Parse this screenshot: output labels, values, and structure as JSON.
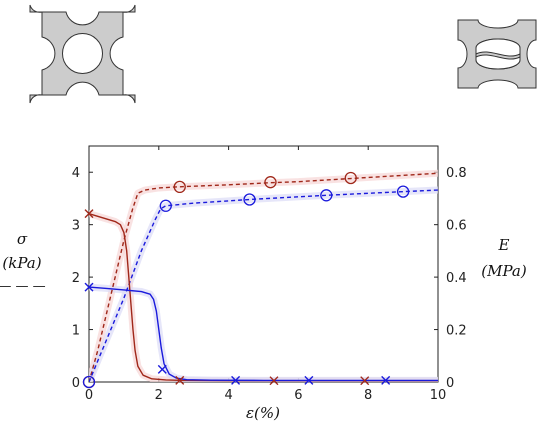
{
  "chart_data": {
    "type": "line",
    "xlabel": "ε(%)",
    "ylabel_left": {
      "symbol": "σ",
      "unit": "(kPa)",
      "linestyle_key": "— — —"
    },
    "ylabel_right": {
      "symbol": "E",
      "unit": "(MPa)"
    },
    "xlim": [
      0,
      10
    ],
    "ylim_left": [
      0,
      4.5
    ],
    "ylim_right": [
      0,
      0.9
    ],
    "x_ticks": [
      "0",
      "2",
      "4",
      "6",
      "8",
      "10"
    ],
    "y_left_ticks": [
      "0",
      "1",
      "2",
      "3",
      "4"
    ],
    "y_right_ticks": [
      "0",
      "0.2",
      "0.4",
      "0.6",
      "0.8"
    ],
    "grid": false,
    "colors": {
      "red": "#a0281a",
      "blue": "#1a1adc",
      "band_red": "#f7d6d6",
      "band_blue": "#dcdcf7",
      "inset_fill": "#cccccc"
    },
    "series": [
      {
        "axis": "left",
        "style": "dashed",
        "color": "#a0281a",
        "marker": "circle",
        "x": [
          0,
          0.25,
          0.5,
          0.75,
          1.0,
          1.25,
          1.4,
          1.6,
          2.0,
          2.5,
          4.0,
          5.2,
          6.0,
          7.5,
          9.0,
          10.0
        ],
        "y": [
          0,
          0.6,
          1.3,
          2.0,
          2.7,
          3.3,
          3.6,
          3.66,
          3.7,
          3.72,
          3.76,
          3.8,
          3.82,
          3.88,
          3.94,
          3.98
        ],
        "markers_x": [
          0,
          2.6,
          5.2,
          7.5
        ],
        "markers_y": [
          0,
          3.72,
          3.81,
          3.89
        ]
      },
      {
        "axis": "left",
        "style": "dashed",
        "color": "#1a1adc",
        "marker": "circle",
        "x": [
          0,
          0.5,
          1.0,
          1.5,
          1.9,
          2.05,
          2.2,
          3.0,
          4.6,
          6.8,
          9.0,
          10.0
        ],
        "y": [
          0,
          0.8,
          1.6,
          2.5,
          3.1,
          3.3,
          3.36,
          3.41,
          3.48,
          3.56,
          3.63,
          3.66
        ],
        "markers_x": [
          0,
          2.2,
          4.6,
          6.8,
          9.0
        ],
        "markers_y": [
          0,
          3.36,
          3.48,
          3.56,
          3.63
        ]
      },
      {
        "axis": "right",
        "style": "solid",
        "color": "#a0281a",
        "marker": "x",
        "x": [
          0,
          0.25,
          0.5,
          0.75,
          0.9,
          1.0,
          1.08,
          1.14,
          1.2,
          1.26,
          1.32,
          1.4,
          1.55,
          1.8,
          2.2,
          2.7,
          4.0,
          10.0
        ],
        "y": [
          0.642,
          0.632,
          0.622,
          0.612,
          0.6,
          0.57,
          0.5,
          0.4,
          0.3,
          0.2,
          0.12,
          0.06,
          0.026,
          0.012,
          0.008,
          0.006,
          0.005,
          0.005
        ],
        "markers_x": [
          0,
          2.6,
          5.3,
          7.9
        ],
        "markers_y": [
          0.642,
          0.006,
          0.005,
          0.005
        ]
      },
      {
        "axis": "right",
        "style": "solid",
        "color": "#1a1adc",
        "marker": "x",
        "x": [
          0,
          0.5,
          1.0,
          1.5,
          1.75,
          1.85,
          1.93,
          2.0,
          2.07,
          2.15,
          2.3,
          2.5,
          2.8,
          3.5,
          5.0,
          10.0
        ],
        "y": [
          0.362,
          0.357,
          0.351,
          0.345,
          0.335,
          0.315,
          0.27,
          0.2,
          0.13,
          0.07,
          0.03,
          0.015,
          0.009,
          0.007,
          0.006,
          0.006
        ],
        "markers_x": [
          0,
          2.1,
          4.2,
          6.3,
          8.5
        ],
        "markers_y": [
          0.362,
          0.048,
          0.006,
          0.006,
          0.006
        ]
      }
    ]
  },
  "insets": [
    {
      "name": "undeformed-unit-cell",
      "icon": "circular-hole-lattice"
    },
    {
      "name": "deformed-unit-cell",
      "icon": "buckled-elliptical-hole-lattice"
    }
  ]
}
